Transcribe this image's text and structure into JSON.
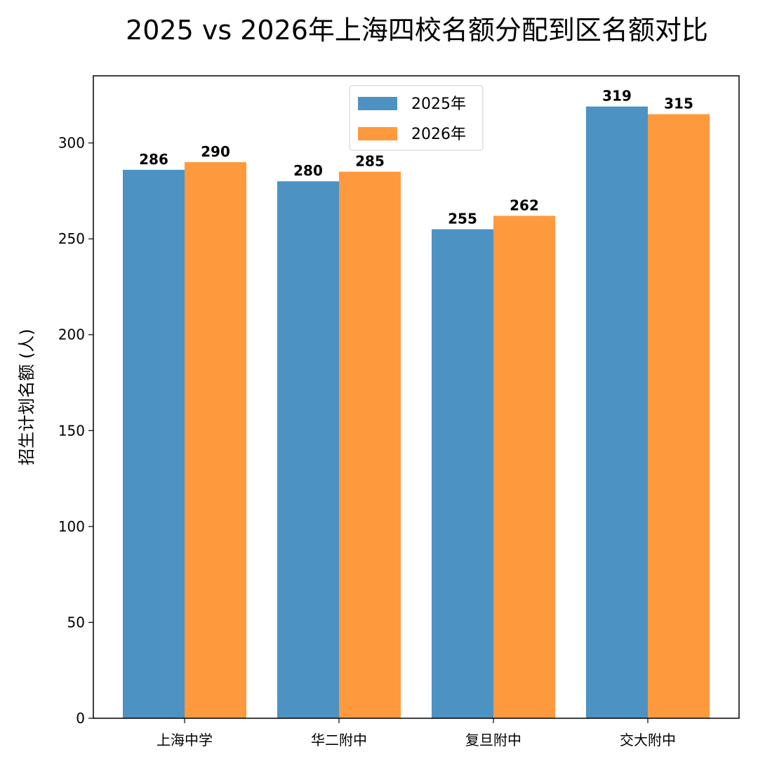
{
  "chart_data": {
    "type": "bar",
    "title": "2025 vs 2026年上海四校名额分配到区名额对比",
    "xlabel": "",
    "ylabel": "招生计划名额 (人)",
    "categories": [
      "上海中学",
      "华二附中",
      "复旦附中",
      "交大附中"
    ],
    "series": [
      {
        "name": "2025年",
        "values": [
          286,
          280,
          255,
          319
        ],
        "color": "#4c92c3"
      },
      {
        "name": "2026年",
        "values": [
          290,
          285,
          262,
          315
        ],
        "color": "#ff993e"
      }
    ],
    "ylim": [
      0,
      335
    ],
    "yticks": [
      0,
      50,
      100,
      150,
      200,
      250,
      300
    ],
    "data_labels": true,
    "grid": false,
    "legend_position": "upper center"
  }
}
